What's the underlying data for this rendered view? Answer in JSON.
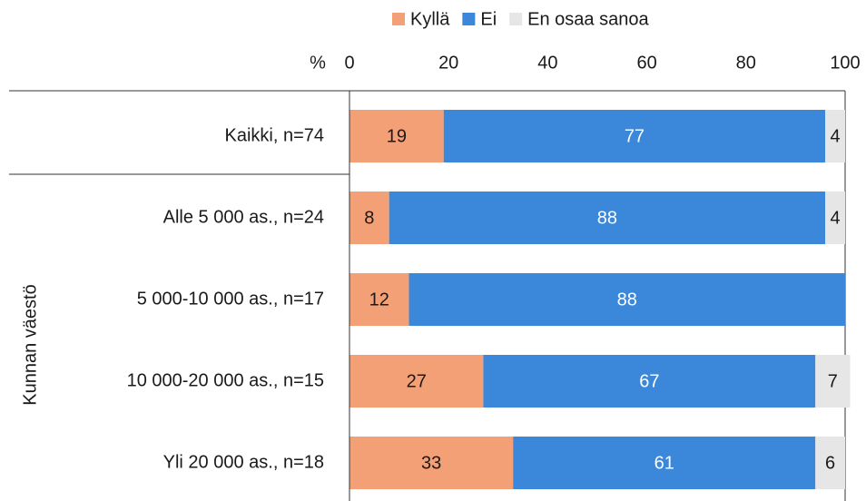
{
  "chart_data": {
    "type": "stacked_bar_horizontal",
    "x_label": "%",
    "group_label": "Kunnan väestö",
    "categories": [
      "Kaikki, n=74",
      "Alle 5 000 as., n=24",
      "5 000-10 000 as., n=17",
      "10 000-20 000 as., n=15",
      "Yli 20 000 as., n=18"
    ],
    "series": [
      {
        "name": "Kyllä",
        "color": "#f4a076",
        "label_color": "#1a1a1a",
        "values": [
          19,
          8,
          12,
          27,
          33
        ]
      },
      {
        "name": "Ei",
        "color": "#3b87da",
        "label_color": "#ffffff",
        "values": [
          77,
          88,
          88,
          67,
          61
        ]
      },
      {
        "name": "En osaa sanoa",
        "color": "#e6e6e6",
        "label_color": "#1a1a1a",
        "values": [
          4,
          4,
          null,
          7,
          6
        ]
      }
    ],
    "xlim": [
      0,
      100
    ],
    "xticks": [
      0,
      20,
      40,
      60,
      80,
      100
    ],
    "legend": "top"
  }
}
